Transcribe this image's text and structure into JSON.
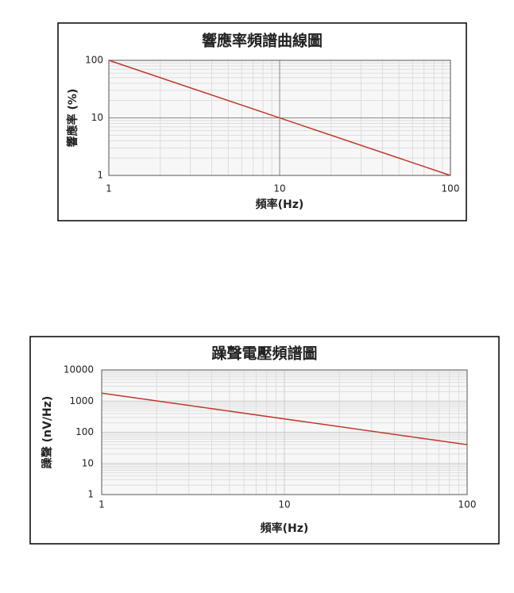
{
  "chart_data": [
    {
      "type": "line",
      "title": "響應率頻譜曲線圖",
      "x_label": "頻率(Hz)",
      "y_label": "響應率 (%)",
      "x": [
        1,
        100
      ],
      "values": [
        100,
        1
      ],
      "color": "#c0392b",
      "xlim": [
        1,
        100
      ],
      "ylim": [
        1,
        100
      ],
      "xticks": [
        1,
        10,
        100
      ],
      "yticks": [
        1,
        10,
        100
      ],
      "x_log": true,
      "y_log": true,
      "grid": true,
      "minor_grid": true
    },
    {
      "type": "line",
      "title": "躁聲電壓頻譜圖",
      "x_label": "頻率(Hz)",
      "y_label": "躁聲 (nV/Hz)",
      "x": [
        1,
        100
      ],
      "values": [
        1800,
        40
      ],
      "color": "#c0392b",
      "xlim": [
        1,
        100
      ],
      "ylim": [
        1,
        10000
      ],
      "xticks": [
        1,
        10,
        100
      ],
      "yticks": [
        1,
        10,
        100,
        1000,
        10000
      ],
      "x_log": true,
      "y_log": true,
      "grid": true,
      "minor_grid": true
    }
  ]
}
